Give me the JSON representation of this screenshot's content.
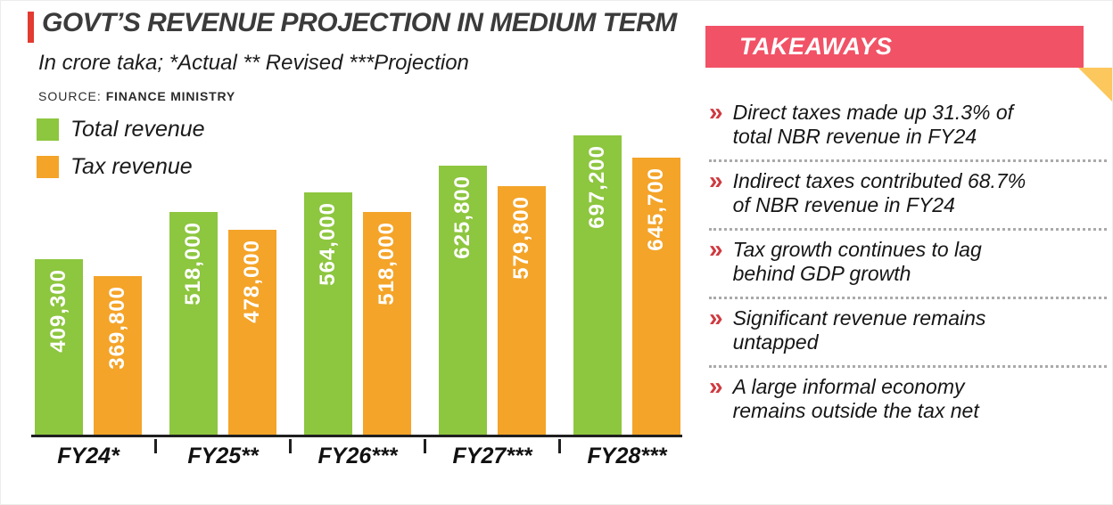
{
  "chart": {
    "title": "GOVT’S REVENUE PROJECTION IN MEDIUM TERM",
    "subtitle": "In crore taka; *Actual ** Revised ***Projection",
    "source_label": "SOURCE:",
    "source_value": "FINANCE MINISTRY",
    "legend": [
      {
        "label": "Total revenue",
        "color": "#8dc63f"
      },
      {
        "label": "Tax revenue",
        "color": "#f4a429"
      }
    ],
    "accent_color": "#e23b31"
  },
  "chart_data": {
    "type": "bar",
    "title": "GOVT’S REVENUE PROJECTION IN MEDIUM TERM",
    "unit": "crore taka",
    "categories": [
      "FY24*",
      "FY25**",
      "FY26***",
      "FY27***",
      "FY28***"
    ],
    "series": [
      {
        "name": "Total revenue",
        "color": "#8dc63f",
        "values": [
          409300,
          518000,
          564000,
          625800,
          697200
        ],
        "labels": [
          "409,300",
          "518,000",
          "564,000",
          "625,800",
          "697,200"
        ]
      },
      {
        "name": "Tax revenue",
        "color": "#f4a429",
        "values": [
          369800,
          478000,
          518000,
          579800,
          645700
        ],
        "labels": [
          "369,800",
          "478,000",
          "518,000",
          "579,800",
          "645,700"
        ]
      }
    ],
    "xlabel": "",
    "ylabel": "",
    "ylim": [
      0,
      720000
    ],
    "grid": false,
    "legend_position": "top-left",
    "value_label_style": "rotated-inside-bar"
  },
  "takeaways": {
    "header": "TAKEAWAYS",
    "bullet_icon": "»",
    "items": [
      "Direct taxes made up 31.3% of total NBR revenue in FY24",
      "Indirect taxes contributed 68.7% of NBR revenue in FY24",
      "Tax growth continues to lag behind GDP growth",
      "Significant revenue remains untapped",
      "A large informal economy remains outside the tax net"
    ],
    "colors": {
      "header_bg": "#f15266",
      "bullet": "#cf3a40",
      "fold": "#fcc75c"
    }
  }
}
